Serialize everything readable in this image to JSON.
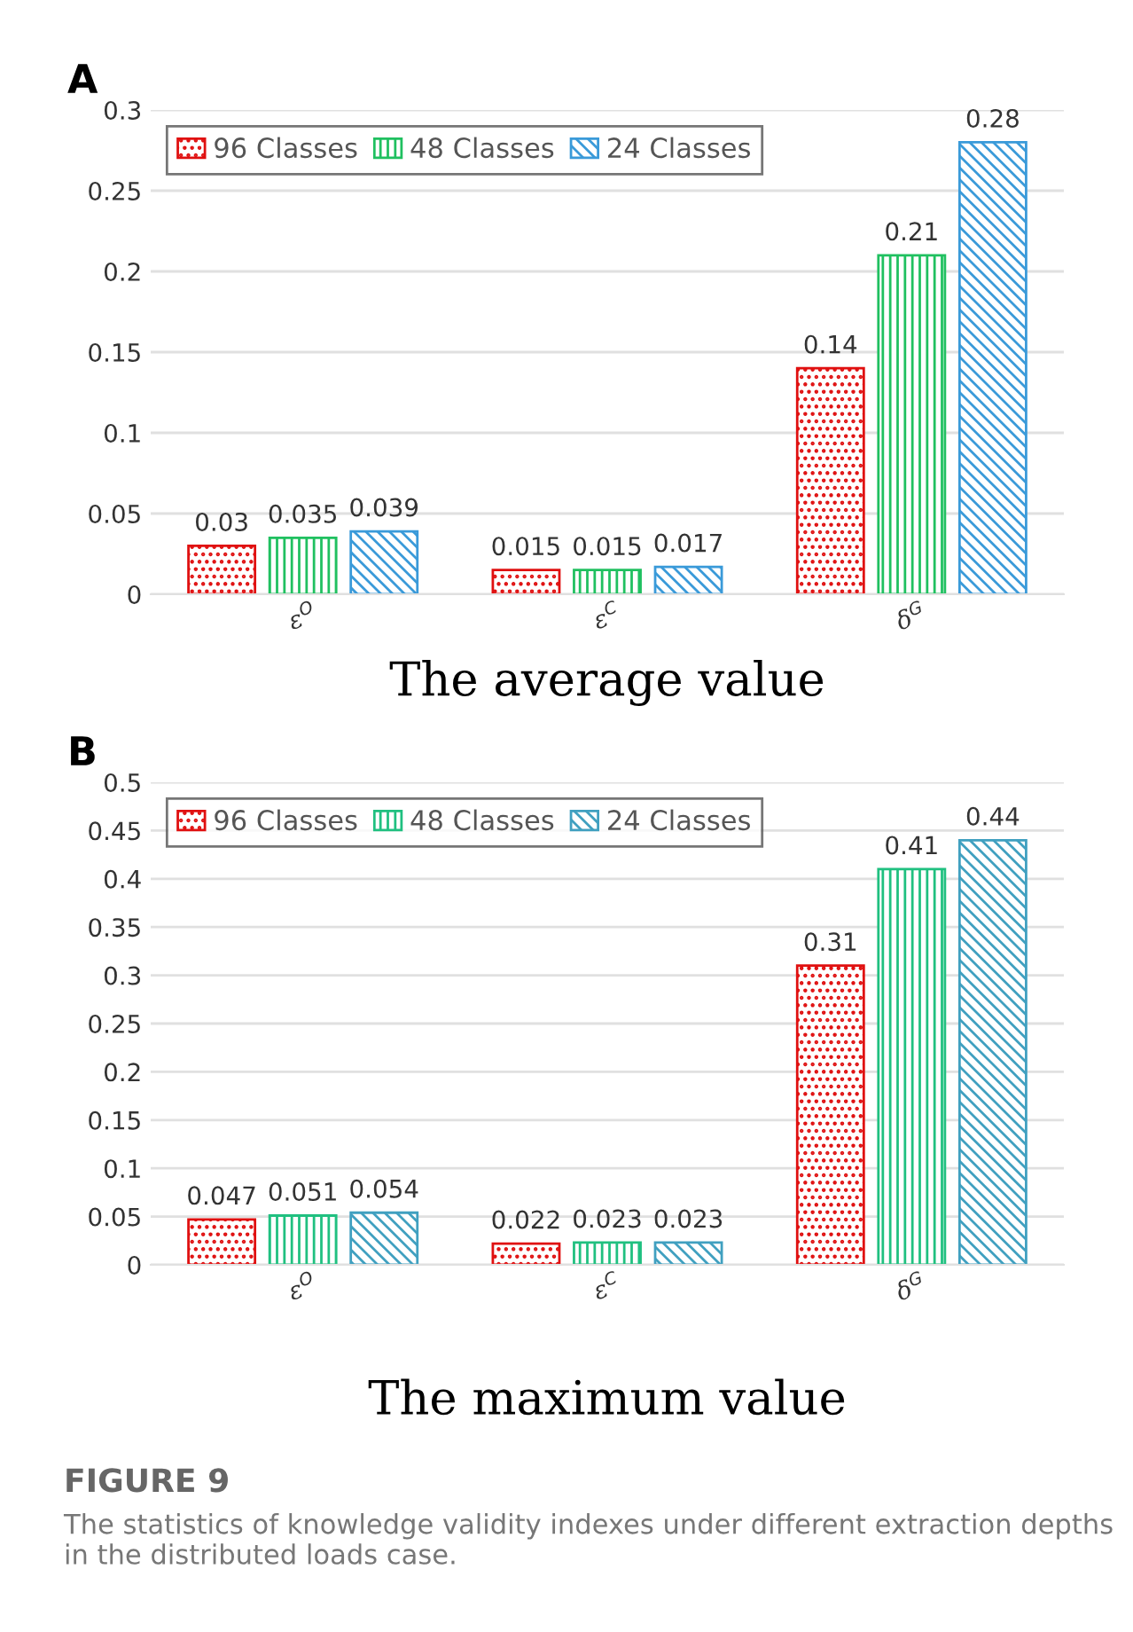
{
  "chart_data": [
    {
      "type": "bar",
      "title": "A",
      "xlabel": "The average value",
      "categories": [
        "ε$^{O}$",
        "ε$^{C}$",
        "δ$^{G}$"
      ],
      "series": [
        {
          "name": "96 Classes",
          "color": "#e01010",
          "values": [
            0.03,
            0.015,
            0.14
          ]
        },
        {
          "name": "48 Classes",
          "color": "#20c060",
          "values": [
            0.035,
            0.015,
            0.21
          ]
        },
        {
          "name": "24 Classes",
          "color": "#3a9ad9",
          "values": [
            0.039,
            0.017,
            0.28
          ]
        }
      ],
      "ylim": [
        0,
        0.3
      ],
      "yticks": [
        0,
        0.05,
        0.1,
        0.15,
        0.2,
        0.25,
        0.3
      ],
      "grid": "y",
      "legend": "top left",
      "data_labels": true
    },
    {
      "type": "bar",
      "title": "B",
      "xlabel": "The maximum value",
      "categories": [
        "ε$^{O}$",
        "ε$^{C}$",
        "δ$^{G}$"
      ],
      "series": [
        {
          "name": "96 Classes",
          "color": "#e01010",
          "values": [
            0.047,
            0.022,
            0.31
          ]
        },
        {
          "name": "48 Classes",
          "color": "#20c080",
          "values": [
            0.051,
            0.023,
            0.41
          ]
        },
        {
          "name": "24 Classes",
          "color": "#40a0c0",
          "values": [
            0.054,
            0.023,
            0.44
          ]
        }
      ],
      "ylim": [
        0,
        0.5
      ],
      "yticks": [
        0,
        0.05,
        0.1,
        0.15,
        0.2,
        0.25,
        0.3,
        0.35,
        0.4,
        0.45,
        0.5
      ],
      "grid": "y",
      "legend": "top left",
      "data_labels": true,
      "annotations": [
        "FIGURE 9",
        "The statistics of knowledge validity indexes under different extraction depths in the distributed loads case."
      ]
    }
  ]
}
